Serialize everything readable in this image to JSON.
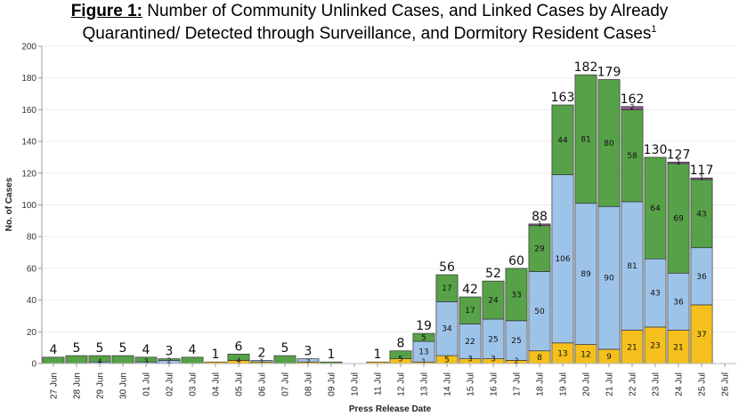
{
  "title": {
    "lead": "Figure 1:",
    "line1": " Number of Community Unlinked Cases, and Linked Cases by Already",
    "line2": "Quarantined/ Detected through Surveillance, and Dormitory Resident Cases",
    "footnote": "1"
  },
  "colors": {
    "community_unlinked": "#8c5a8c",
    "linked_already_quarantined": "#f5c01e",
    "linked_detected_surveillance": "#9ec3e9",
    "dormitory_resident": "#57a149",
    "outline": "#333333"
  },
  "chart_data": {
    "type": "bar",
    "stacked": true,
    "title": "Number of Community Unlinked Cases, and Linked Cases by Already Quarantined/ Detected through Surveillance, and Dormitory Resident Cases",
    "xlabel": "Press Release Date",
    "ylabel": "No. of Cases",
    "ylim": [
      0,
      200
    ],
    "yticks": [
      0,
      20,
      40,
      60,
      80,
      100,
      120,
      140,
      160,
      180,
      200
    ],
    "grid": true,
    "categories": [
      "27 Jun",
      "28 Jun",
      "29 Jun",
      "30 Jun",
      "01 Jul",
      "02 Jul",
      "03 Jul",
      "04 Jul",
      "05 Jul",
      "06 Jul",
      "07 Jul",
      "08 Jul",
      "09 Jul",
      "10 Jul",
      "11 Jul",
      "12 Jul",
      "13 Jul",
      "14 Jul",
      "15 Jul",
      "16 Jul",
      "17 Jul",
      "18 Jul",
      "19 Jul",
      "20 Jul",
      "21 Jul",
      "22 Jul",
      "23 Jul",
      "24 Jul",
      "25 Jul",
      "26 Jul"
    ],
    "series": [
      {
        "values": [
          0,
          0,
          0,
          0,
          0,
          0,
          0,
          1,
          2,
          1,
          0,
          1,
          0,
          0,
          1,
          3,
          1,
          5,
          3,
          3,
          2,
          8,
          13,
          12,
          9,
          21,
          23,
          21,
          37,
          0
        ]
      },
      {
        "values": [
          0,
          0,
          1,
          0,
          1,
          2,
          0,
          0,
          0,
          1,
          0,
          2,
          0,
          0,
          0,
          0,
          13,
          34,
          22,
          25,
          25,
          50,
          106,
          89,
          90,
          81,
          43,
          36,
          36,
          0
        ]
      },
      {
        "values": [
          4,
          5,
          4,
          5,
          3,
          1,
          4,
          0,
          4,
          0,
          5,
          0,
          1,
          0,
          0,
          5,
          5,
          17,
          17,
          24,
          33,
          29,
          44,
          81,
          80,
          58,
          64,
          69,
          43,
          0
        ]
      },
      {
        "values": [
          0,
          0,
          0,
          0,
          0,
          0,
          0,
          0,
          0,
          0,
          0,
          0,
          0,
          0,
          0,
          0,
          0,
          0,
          0,
          0,
          0,
          1,
          0,
          0,
          0,
          2,
          0,
          1,
          1,
          0
        ]
      }
    ],
    "totals": [
      4,
      5,
      5,
      5,
      4,
      3,
      4,
      1,
      6,
      2,
      5,
      3,
      1,
      0,
      1,
      8,
      19,
      56,
      42,
      52,
      60,
      88,
      163,
      182,
      179,
      162,
      130,
      127,
      117,
      0
    ],
    "segment_labels": [
      {
        "category": "29 Jun",
        "value": "4"
      },
      {
        "category": "01 Jul",
        "value": "3"
      },
      {
        "category": "02 Jul",
        "value": "2"
      },
      {
        "category": "05 Jul",
        "value": "4"
      },
      {
        "category": "06 Jul",
        "value": "1"
      },
      {
        "category": "08 Jul",
        "value": "2"
      },
      {
        "category": "12 Jul",
        "value": "5"
      },
      {
        "category": "13 Jul",
        "value": "1"
      },
      {
        "category": "13 Jul",
        "value": "13"
      },
      {
        "category": "13 Jul",
        "value": "5"
      },
      {
        "category": "14 Jul",
        "value": "5"
      },
      {
        "category": "14 Jul",
        "value": "34"
      },
      {
        "category": "14 Jul",
        "value": "17"
      },
      {
        "category": "15 Jul",
        "value": "3"
      },
      {
        "category": "15 Jul",
        "value": "22"
      },
      {
        "category": "15 Jul",
        "value": "17"
      },
      {
        "category": "16 Jul",
        "value": "3"
      },
      {
        "category": "16 Jul",
        "value": "25"
      },
      {
        "category": "16 Jul",
        "value": "24"
      },
      {
        "category": "17 Jul",
        "value": "2"
      },
      {
        "category": "17 Jul",
        "value": "25"
      },
      {
        "category": "17 Jul",
        "value": "33"
      },
      {
        "category": "18 Jul",
        "value": "8"
      },
      {
        "category": "18 Jul",
        "value": "50"
      },
      {
        "category": "18 Jul",
        "value": "29"
      },
      {
        "category": "18 Jul",
        "value": "1"
      },
      {
        "category": "19 Jul",
        "value": "13"
      },
      {
        "category": "19 Jul",
        "value": "106"
      },
      {
        "category": "19 Jul",
        "value": "44"
      },
      {
        "category": "20 Jul",
        "value": "12"
      },
      {
        "category": "20 Jul",
        "value": "89"
      },
      {
        "category": "20 Jul",
        "value": "81"
      },
      {
        "category": "21 Jul",
        "value": "9"
      },
      {
        "category": "21 Jul",
        "value": "90"
      },
      {
        "category": "21 Jul",
        "value": "80"
      },
      {
        "category": "22 Jul",
        "value": "21"
      },
      {
        "category": "22 Jul",
        "value": "81"
      },
      {
        "category": "22 Jul",
        "value": "58"
      },
      {
        "category": "22 Jul",
        "value": "2"
      },
      {
        "category": "23 Jul",
        "value": "23"
      },
      {
        "category": "23 Jul",
        "value": "43"
      },
      {
        "category": "23 Jul",
        "value": "64"
      },
      {
        "category": "24 Jul",
        "value": "21"
      },
      {
        "category": "24 Jul",
        "value": "36"
      },
      {
        "category": "24 Jul",
        "value": "69"
      },
      {
        "category": "24 Jul",
        "value": "1"
      },
      {
        "category": "25 Jul",
        "value": "37"
      },
      {
        "category": "25 Jul",
        "value": "36"
      },
      {
        "category": "25 Jul",
        "value": "43"
      },
      {
        "category": "25 Jul",
        "value": "1"
      }
    ]
  }
}
